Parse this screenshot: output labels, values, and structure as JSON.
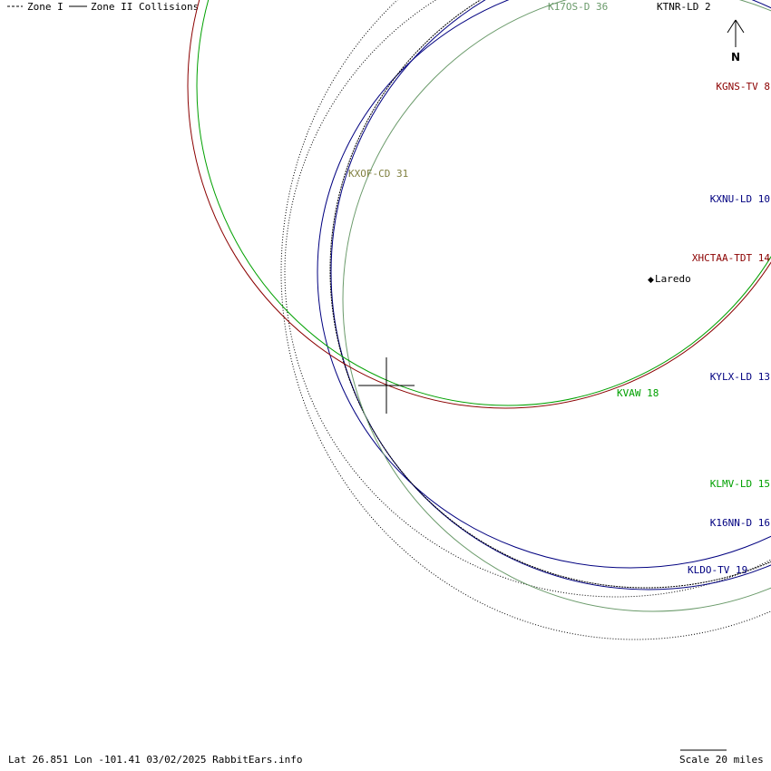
{
  "legend": {
    "zone1_label": "Zone I",
    "zone2_label": "Zone II Collisions"
  },
  "compass": {
    "north_label": "N"
  },
  "city": {
    "name": "Laredo"
  },
  "stations": [
    {
      "callsign": "K17OS-D 36",
      "color": "#6a9a6a"
    },
    {
      "callsign": "KTNR-LD 2",
      "color": "#000000"
    },
    {
      "callsign": "KGNS-TV 8",
      "color": "#8b0000"
    },
    {
      "callsign": "KXOF-CD 31",
      "color": "#808040"
    },
    {
      "callsign": "KXNU-LD 10",
      "color": "#000080"
    },
    {
      "callsign": "XHCTAA-TDT 14",
      "color": "#8b0000"
    },
    {
      "callsign": "KYLX-LD 13",
      "color": "#000080"
    },
    {
      "callsign": "KVAW 18",
      "color": "#00a000"
    },
    {
      "callsign": "KLMV-LD 15",
      "color": "#00a000"
    },
    {
      "callsign": "K16NN-D 16",
      "color": "#000080"
    },
    {
      "callsign": "KLDO-TV 19",
      "color": "#000080"
    }
  ],
  "footer": {
    "coords": "Lat 26.851 Lon -101.41 03/02/2025 RabbitEars.info",
    "scale": "Scale 20 miles"
  }
}
